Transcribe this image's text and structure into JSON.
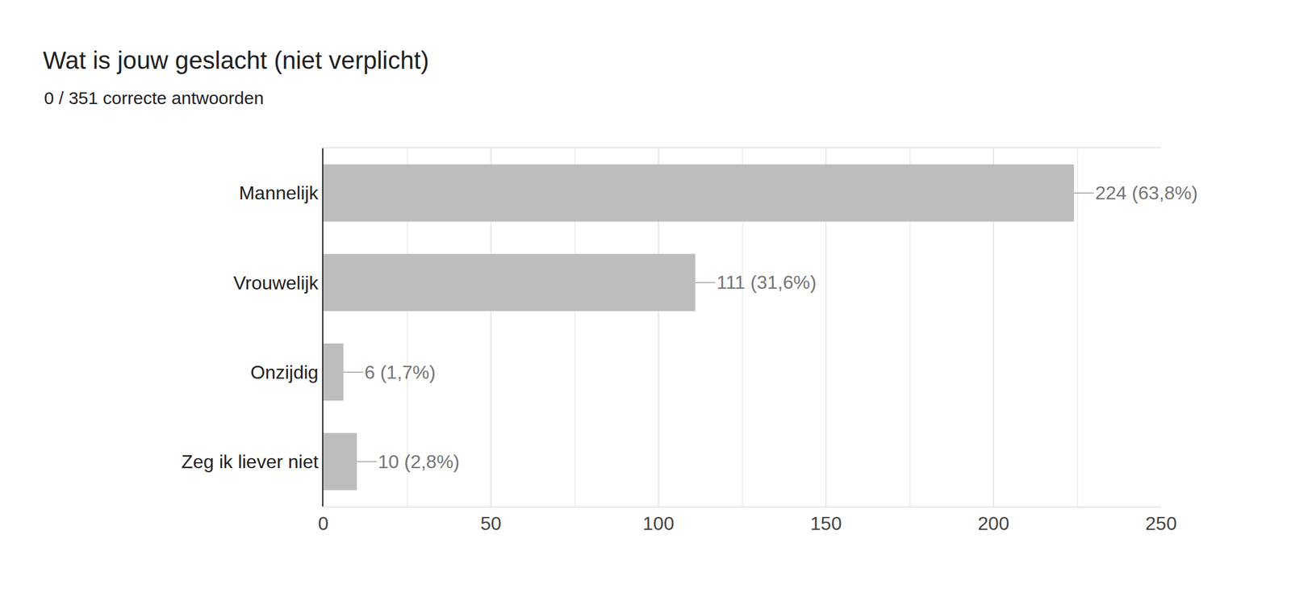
{
  "chart_data": {
    "type": "bar",
    "title": "Wat is jouw geslacht (niet verplicht)",
    "subtitle": "0 / 351 correcte antwoorden",
    "categories": [
      "Mannelijk",
      "Vrouwelijk",
      "Onzijdig",
      "Zeg ik liever niet"
    ],
    "values": [
      224,
      111,
      6,
      10
    ],
    "value_labels": [
      "224 (63,8%)",
      "111 (31,6%)",
      "6 (1,7%)",
      "10 (2,8%)"
    ],
    "color": "#bdbdbd",
    "orientation": "horizontal",
    "data_labels": true,
    "xlim": [
      0,
      250
    ],
    "xticks": [
      0,
      50,
      100,
      150,
      200,
      250
    ],
    "grid": true
  }
}
